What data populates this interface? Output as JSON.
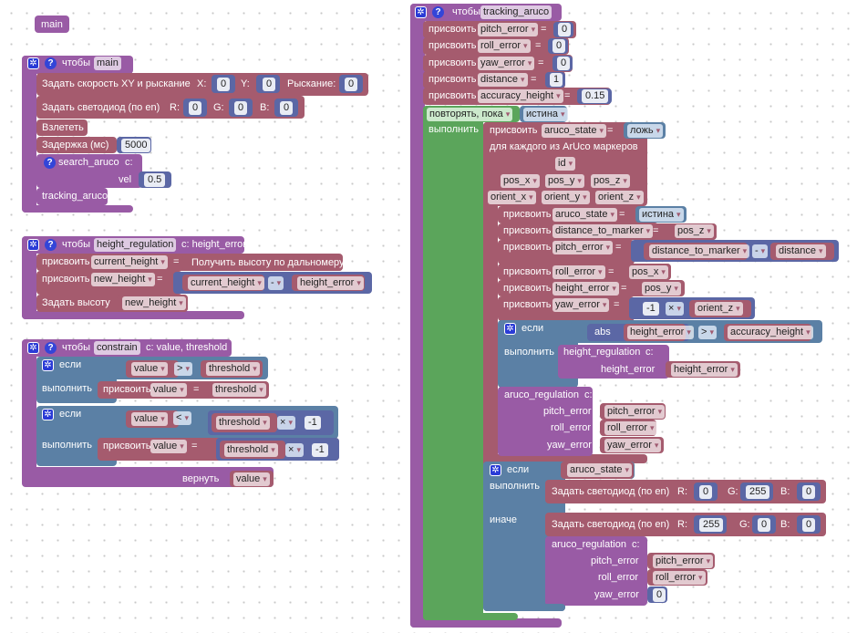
{
  "colors": {
    "procedure": "#995ba5",
    "action": "#a55b6e",
    "logic": "#5b80a5",
    "math": "#5b67a5",
    "loop": "#5ba55b",
    "workspace": "#ffffff"
  },
  "main_hat": {
    "label": "main"
  },
  "proc_main": {
    "keyword": "чтобы",
    "name": "main",
    "set_speed": {
      "label": "Задать скорость XY и рыскание",
      "x_label": "X:",
      "x": "0",
      "y_label": "Y:",
      "y": "0",
      "yaw_label": "Рыскание:",
      "yaw": "0"
    },
    "set_led": {
      "label": "Задать светодиод (по en)",
      "r_label": "R:",
      "r": "0",
      "g_label": "G:",
      "g": "0",
      "b_label": "B:",
      "b": "0"
    },
    "takeoff": "Взлететь",
    "delay": {
      "label": "Задержка (мс)",
      "value": "5000"
    },
    "search_call": {
      "name": "search_aruco",
      "with": "с:",
      "param": "vel",
      "value": "0.5"
    },
    "tracking_call": "tracking_aruco"
  },
  "proc_height_regulation": {
    "keyword": "чтобы",
    "name": "height_regulation",
    "params": "с: height_error",
    "assign1": {
      "label": "присвоить",
      "var": "current_height",
      "eq": "=",
      "value": "Получить высоту по дальномеру"
    },
    "assign2": {
      "label": "присвоить",
      "var": "new_height",
      "eq": "=",
      "left": "current_height",
      "op": "-",
      "right": "height_error"
    },
    "set_height": {
      "label": "Задать высоту",
      "value": "new_height"
    }
  },
  "proc_constrain": {
    "keyword": "чтобы",
    "name": "constrain",
    "params": "с: value, threshold",
    "if1": {
      "if": "если",
      "left": "value",
      "op": ">",
      "right": "threshold",
      "do": "выполнить",
      "assign": "присвоить",
      "var": "value",
      "eq": "=",
      "value": "threshold"
    },
    "if2": {
      "if": "если",
      "left": "value",
      "op": "<",
      "mul_var": "threshold",
      "mul_op": "×",
      "mul_num": "-1",
      "do": "выполнить",
      "assign": "присвоить",
      "var": "value",
      "eq": "=",
      "value_var": "threshold",
      "value_op": "×",
      "value_num": "-1"
    },
    "return": {
      "label": "вернуть",
      "value": "value"
    }
  },
  "proc_tracking_aruco": {
    "keyword": "чтобы",
    "name": "tracking_aruco",
    "init": [
      {
        "label": "присвоить",
        "var": "pitch_error",
        "eq": "=",
        "value": "0"
      },
      {
        "label": "присвоить",
        "var": "roll_error",
        "eq": "=",
        "value": "0"
      },
      {
        "label": "присвоить",
        "var": "yaw_error",
        "eq": "=",
        "value": "0"
      },
      {
        "label": "присвоить",
        "var": "distance",
        "eq": "=",
        "value": "1"
      },
      {
        "label": "присвоить",
        "var": "accuracy_height",
        "eq": "=",
        "value": "0.15"
      }
    ],
    "loop": {
      "label": "повторять, пока",
      "cond": "истина",
      "do": "выполнить",
      "reset": {
        "label": "присвоить",
        "var": "aruco_state",
        "eq": "=",
        "value": "ложь"
      },
      "foreach": {
        "label": "для каждого из ArUco маркеров",
        "vars": [
          "id",
          "pos_x",
          "pos_y",
          "pos_z",
          "orient_x",
          "orient_y",
          "orient_z"
        ],
        "set_state": {
          "label": "присвоить",
          "var": "aruco_state",
          "eq": "=",
          "value": "истина"
        },
        "set_dist": {
          "label": "присвоить",
          "var": "distance_to_marker",
          "eq": "=",
          "value": "pos_z"
        },
        "set_pitch": {
          "label": "присвоить",
          "var": "pitch_error",
          "eq": "=",
          "left": "distance_to_marker",
          "op": "-",
          "right": "distance"
        },
        "set_roll": {
          "label": "присвоить",
          "var": "roll_error",
          "eq": "=",
          "value": "pos_x"
        },
        "set_height": {
          "label": "присвоить",
          "var": "height_error",
          "eq": "=",
          "value": "pos_y"
        },
        "set_yaw": {
          "label": "присвоить",
          "var": "yaw_error",
          "eq": "=",
          "num": "-1",
          "op": "×",
          "right": "orient_z"
        },
        "if_height": {
          "if": "если",
          "fn": "abs",
          "arg": "height_error",
          "op": ">",
          "right": "accuracy_height",
          "do": "выполнить",
          "call": "height_regulation",
          "with": "с:",
          "param": "height_error",
          "param_value": "height_error"
        },
        "call_reg": {
          "name": "aruco_regulation",
          "with": "с:",
          "params": [
            "pitch_error",
            "roll_error",
            "yaw_error"
          ],
          "values": [
            "pitch_error",
            "roll_error",
            "yaw_error"
          ]
        }
      },
      "if_state": {
        "if": "если",
        "cond": "aruco_state",
        "do": "выполнить",
        "else": "иначе",
        "led_green": {
          "label": "Задать светодиод (по en)",
          "r_label": "R:",
          "r": "0",
          "g_label": "G:",
          "g": "255",
          "b_label": "B:",
          "b": "0"
        },
        "led_red": {
          "label": "Задать светодиод (по en)",
          "r_label": "R:",
          "r": "255",
          "g_label": "G:",
          "g": "0",
          "b_label": "B:",
          "b": "0"
        },
        "call_reg": {
          "name": "aruco_regulation",
          "with": "с:",
          "params": [
            "pitch_error",
            "roll_error",
            "yaw_error"
          ],
          "values": [
            "pitch_error",
            "roll_error",
            "0"
          ]
        }
      }
    }
  }
}
